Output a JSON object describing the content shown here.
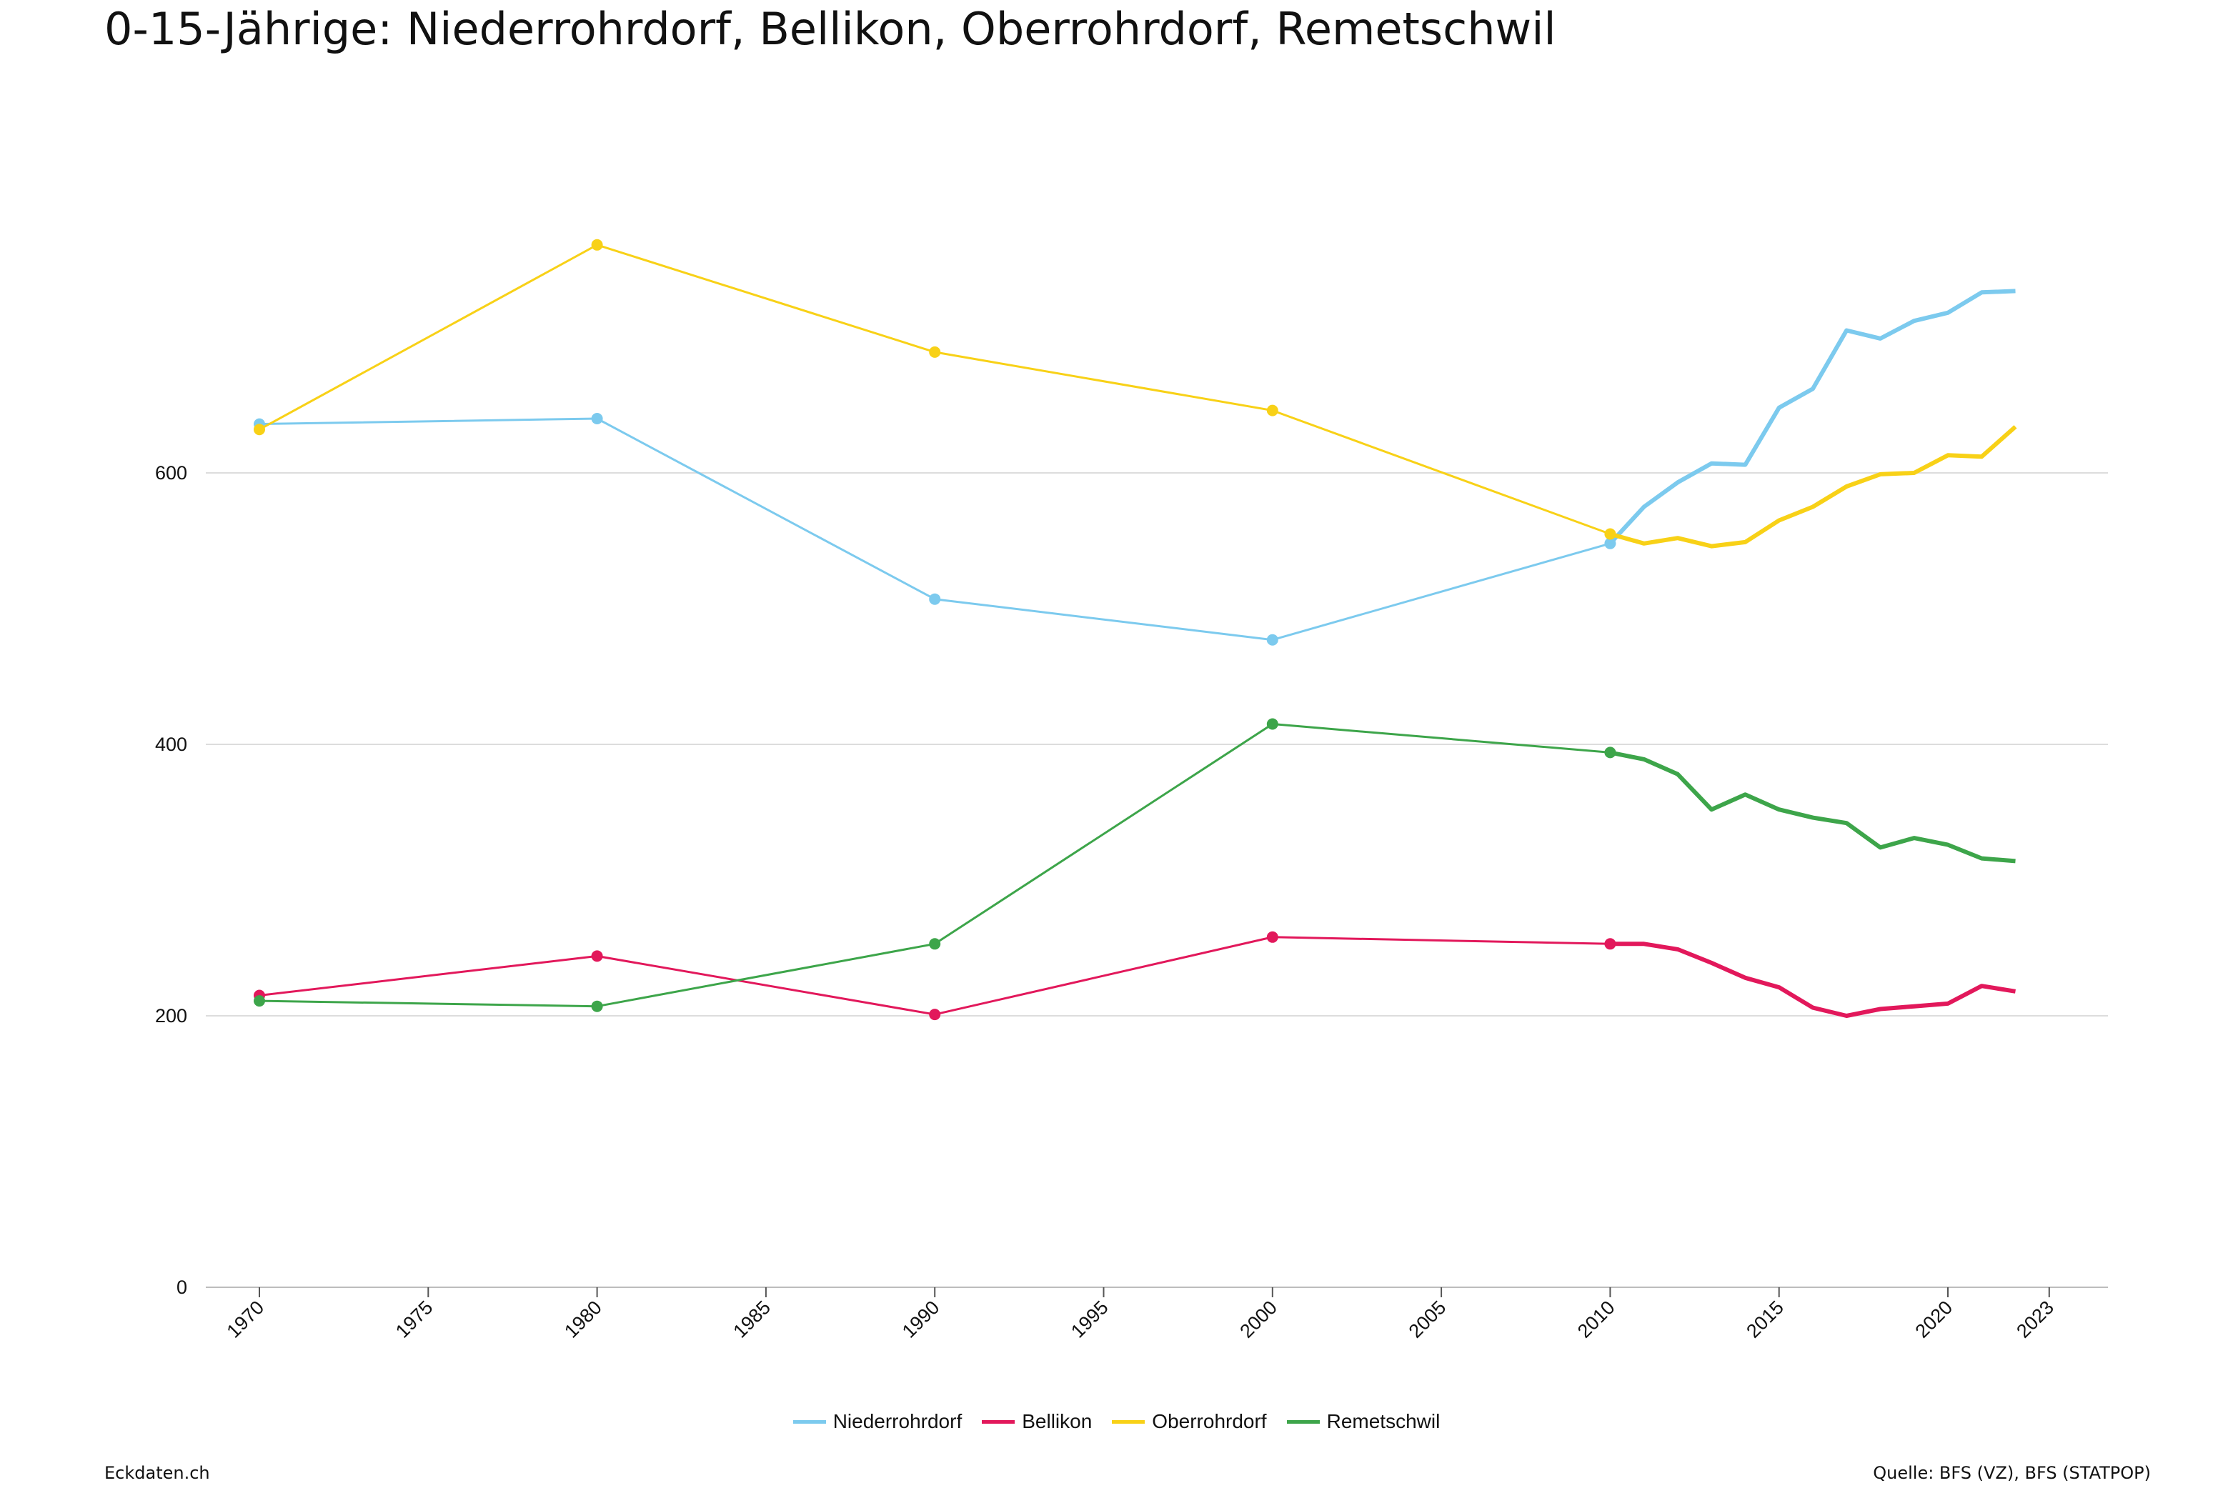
{
  "header": {
    "title": "0-15-Jährige: Niederrohrdorf, Bellikon, Oberrohrdorf, Remetschwil"
  },
  "footer": {
    "site": "Eckdaten.ch",
    "source": "Quelle: BFS (VZ), BFS (STATPOP)"
  },
  "chart_data": {
    "type": "line",
    "title": "0-15-Jährige: Niederrohrdorf, Bellikon, Oberrohrdorf, Remetschwil",
    "xlabel": "",
    "ylabel": "",
    "xlim": [
      1969,
      2024.5
    ],
    "ylim": [
      0,
      780
    ],
    "x_ticks": [
      "1970",
      "1975",
      "1980",
      "1985",
      "1990",
      "1995",
      "2000",
      "2005",
      "2010",
      "2015",
      "2020",
      "2023"
    ],
    "y_ticks": [
      "0",
      "200",
      "400",
      "600"
    ],
    "grid": true,
    "legend_position": "bottom-center",
    "series": [
      {
        "name": "Niederrohrdorf",
        "color": "#7ccaee",
        "census": [
          [
            1970,
            636
          ],
          [
            1980,
            640
          ],
          [
            1990,
            507
          ],
          [
            2000,
            477
          ],
          [
            2010,
            548
          ]
        ],
        "annual": [
          [
            2010,
            548
          ],
          [
            2011,
            575
          ],
          [
            2012,
            593
          ],
          [
            2013,
            607
          ],
          [
            2014,
            606
          ],
          [
            2015,
            648
          ],
          [
            2016,
            662
          ],
          [
            2017,
            705
          ],
          [
            2018,
            699
          ],
          [
            2019,
            712
          ],
          [
            2020,
            718
          ],
          [
            2021,
            733
          ],
          [
            2022,
            734
          ]
        ]
      },
      {
        "name": "Bellikon",
        "color": "#e2185b",
        "census": [
          [
            1970,
            215
          ],
          [
            1980,
            244
          ],
          [
            1990,
            201
          ],
          [
            2000,
            258
          ],
          [
            2010,
            253
          ]
        ],
        "annual": [
          [
            2010,
            253
          ],
          [
            2011,
            253
          ],
          [
            2012,
            249
          ],
          [
            2013,
            239
          ],
          [
            2014,
            228
          ],
          [
            2015,
            221
          ],
          [
            2016,
            206
          ],
          [
            2017,
            200
          ],
          [
            2018,
            205
          ],
          [
            2019,
            207
          ],
          [
            2020,
            209
          ],
          [
            2021,
            222
          ],
          [
            2022,
            218
          ]
        ]
      },
      {
        "name": "Oberrohrdorf",
        "color": "#f8d117",
        "census": [
          [
            1970,
            632
          ],
          [
            1980,
            768
          ],
          [
            1990,
            689
          ],
          [
            2000,
            646
          ],
          [
            2010,
            555
          ]
        ],
        "annual": [
          [
            2010,
            555
          ],
          [
            2011,
            548
          ],
          [
            2012,
            552
          ],
          [
            2013,
            546
          ],
          [
            2014,
            549
          ],
          [
            2015,
            565
          ],
          [
            2016,
            575
          ],
          [
            2017,
            590
          ],
          [
            2018,
            599
          ],
          [
            2019,
            600
          ],
          [
            2020,
            613
          ],
          [
            2021,
            612
          ],
          [
            2022,
            634
          ]
        ]
      },
      {
        "name": "Remetschwil",
        "color": "#3da54a",
        "census": [
          [
            1970,
            211
          ],
          [
            1980,
            207
          ],
          [
            1990,
            253
          ],
          [
            2000,
            415
          ],
          [
            2010,
            394
          ]
        ],
        "annual": [
          [
            2010,
            394
          ],
          [
            2011,
            389
          ],
          [
            2012,
            378
          ],
          [
            2013,
            352
          ],
          [
            2014,
            363
          ],
          [
            2015,
            352
          ],
          [
            2016,
            346
          ],
          [
            2017,
            342
          ],
          [
            2018,
            324
          ],
          [
            2019,
            331
          ],
          [
            2020,
            326
          ],
          [
            2021,
            316
          ],
          [
            2022,
            314
          ]
        ]
      }
    ]
  }
}
